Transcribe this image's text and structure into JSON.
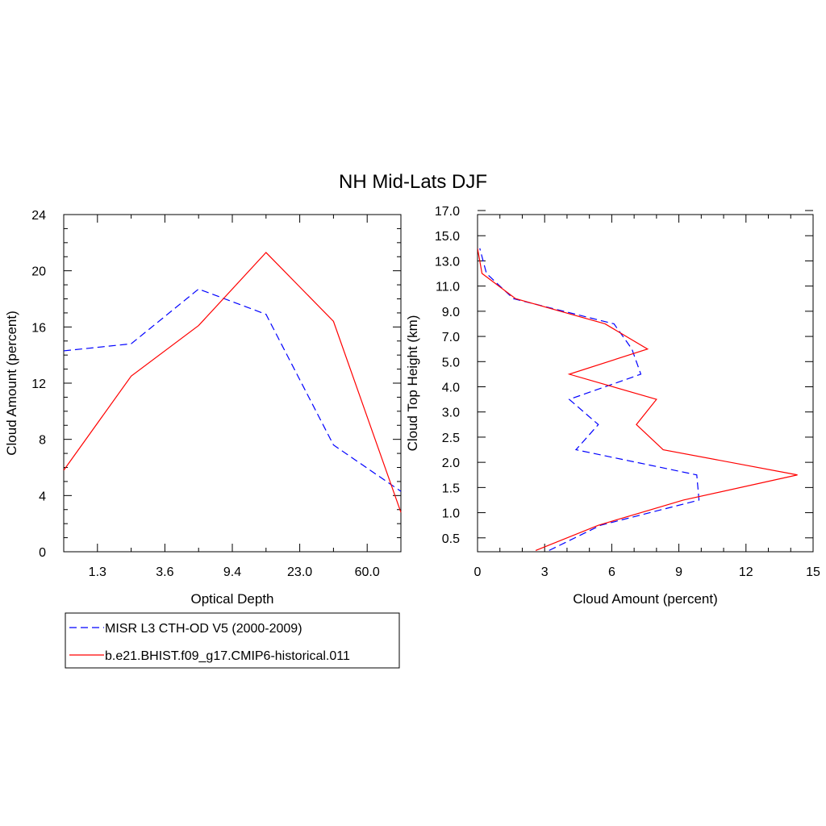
{
  "figure": {
    "title": "NH Mid-Lats DJF"
  },
  "legend": {
    "entries": [
      {
        "label": "MISR L3 CTH-OD V5 (2000-2009)",
        "color": "#0000ff",
        "dash": true
      },
      {
        "label": "b.e21.BHIST.f09_g17.CMIP6-historical.011",
        "color": "#ff0000",
        "dash": false
      }
    ]
  },
  "chart_data": [
    {
      "type": "line",
      "title": "",
      "xlabel": "Optical Depth",
      "ylabel": "Cloud Amount (percent)",
      "x_scale": "ordinal optical-depth bins",
      "x_bins": [
        0.3,
        1.3,
        2.45,
        3.6,
        6.5,
        9.4,
        16.2,
        23.0,
        41.5,
        60.0,
        80.0
      ],
      "x_tick_labels": [
        "1.3",
        "3.6",
        "9.4",
        "23.0",
        "60.0"
      ],
      "ylim": [
        0,
        24
      ],
      "y_ticks": [
        0,
        4,
        8,
        12,
        16,
        20,
        24
      ],
      "grid": false,
      "series": [
        {
          "name": "MISR L3 CTH-OD V5 (2000-2009)",
          "color": "#0000ff",
          "dash": true,
          "x": [
            0.3,
            2.45,
            6.5,
            16.2,
            41.5,
            80.0
          ],
          "y": [
            14.3,
            14.8,
            18.7,
            16.9,
            7.6,
            4.3
          ]
        },
        {
          "name": "b.e21.BHIST.f09_g17.CMIP6-historical.011",
          "color": "#ff0000",
          "dash": false,
          "x": [
            0.3,
            2.45,
            6.5,
            16.2,
            41.5,
            80.0
          ],
          "y": [
            5.8,
            12.5,
            16.1,
            21.3,
            16.4,
            2.8
          ]
        }
      ]
    },
    {
      "type": "line",
      "title": "",
      "xlabel": "Cloud Amount (percent)",
      "ylabel": "Cloud Top Height (km)",
      "xlim": [
        0,
        15
      ],
      "x_ticks": [
        0,
        3,
        6,
        9,
        12,
        15
      ],
      "y_scale": "ordinal height bins",
      "y_tick_labels": [
        "0.5",
        "1.0",
        "1.5",
        "2.0",
        "2.5",
        "3.0",
        "4.0",
        "5.0",
        "7.0",
        "9.0",
        "11.0",
        "13.0",
        "15.0",
        "17.0"
      ],
      "grid": false,
      "series": [
        {
          "name": "MISR L3 CTH-OD V5 (2000-2009)",
          "color": "#0000ff",
          "dash": true,
          "x": [
            3.2,
            5.5,
            9.9,
            9.8,
            4.4,
            5.4,
            4.1,
            7.3,
            6.9,
            6.1,
            1.6,
            0.4,
            0.1
          ],
          "y": [
            0.25,
            0.75,
            1.25,
            1.75,
            2.25,
            2.75,
            3.5,
            4.5,
            6.0,
            8.0,
            10.0,
            12.0,
            14.0
          ]
        },
        {
          "name": "b.e21.BHIST.f09_g17.CMIP6-historical.011",
          "color": "#ff0000",
          "dash": false,
          "x": [
            2.6,
            5.4,
            9.2,
            14.3,
            8.3,
            7.1,
            8.0,
            4.1,
            7.6,
            5.7,
            1.7,
            0.2,
            0.0
          ],
          "y": [
            0.25,
            0.75,
            1.25,
            1.75,
            2.25,
            2.75,
            3.5,
            4.5,
            6.0,
            8.0,
            10.0,
            12.0,
            14.0
          ]
        }
      ]
    }
  ]
}
